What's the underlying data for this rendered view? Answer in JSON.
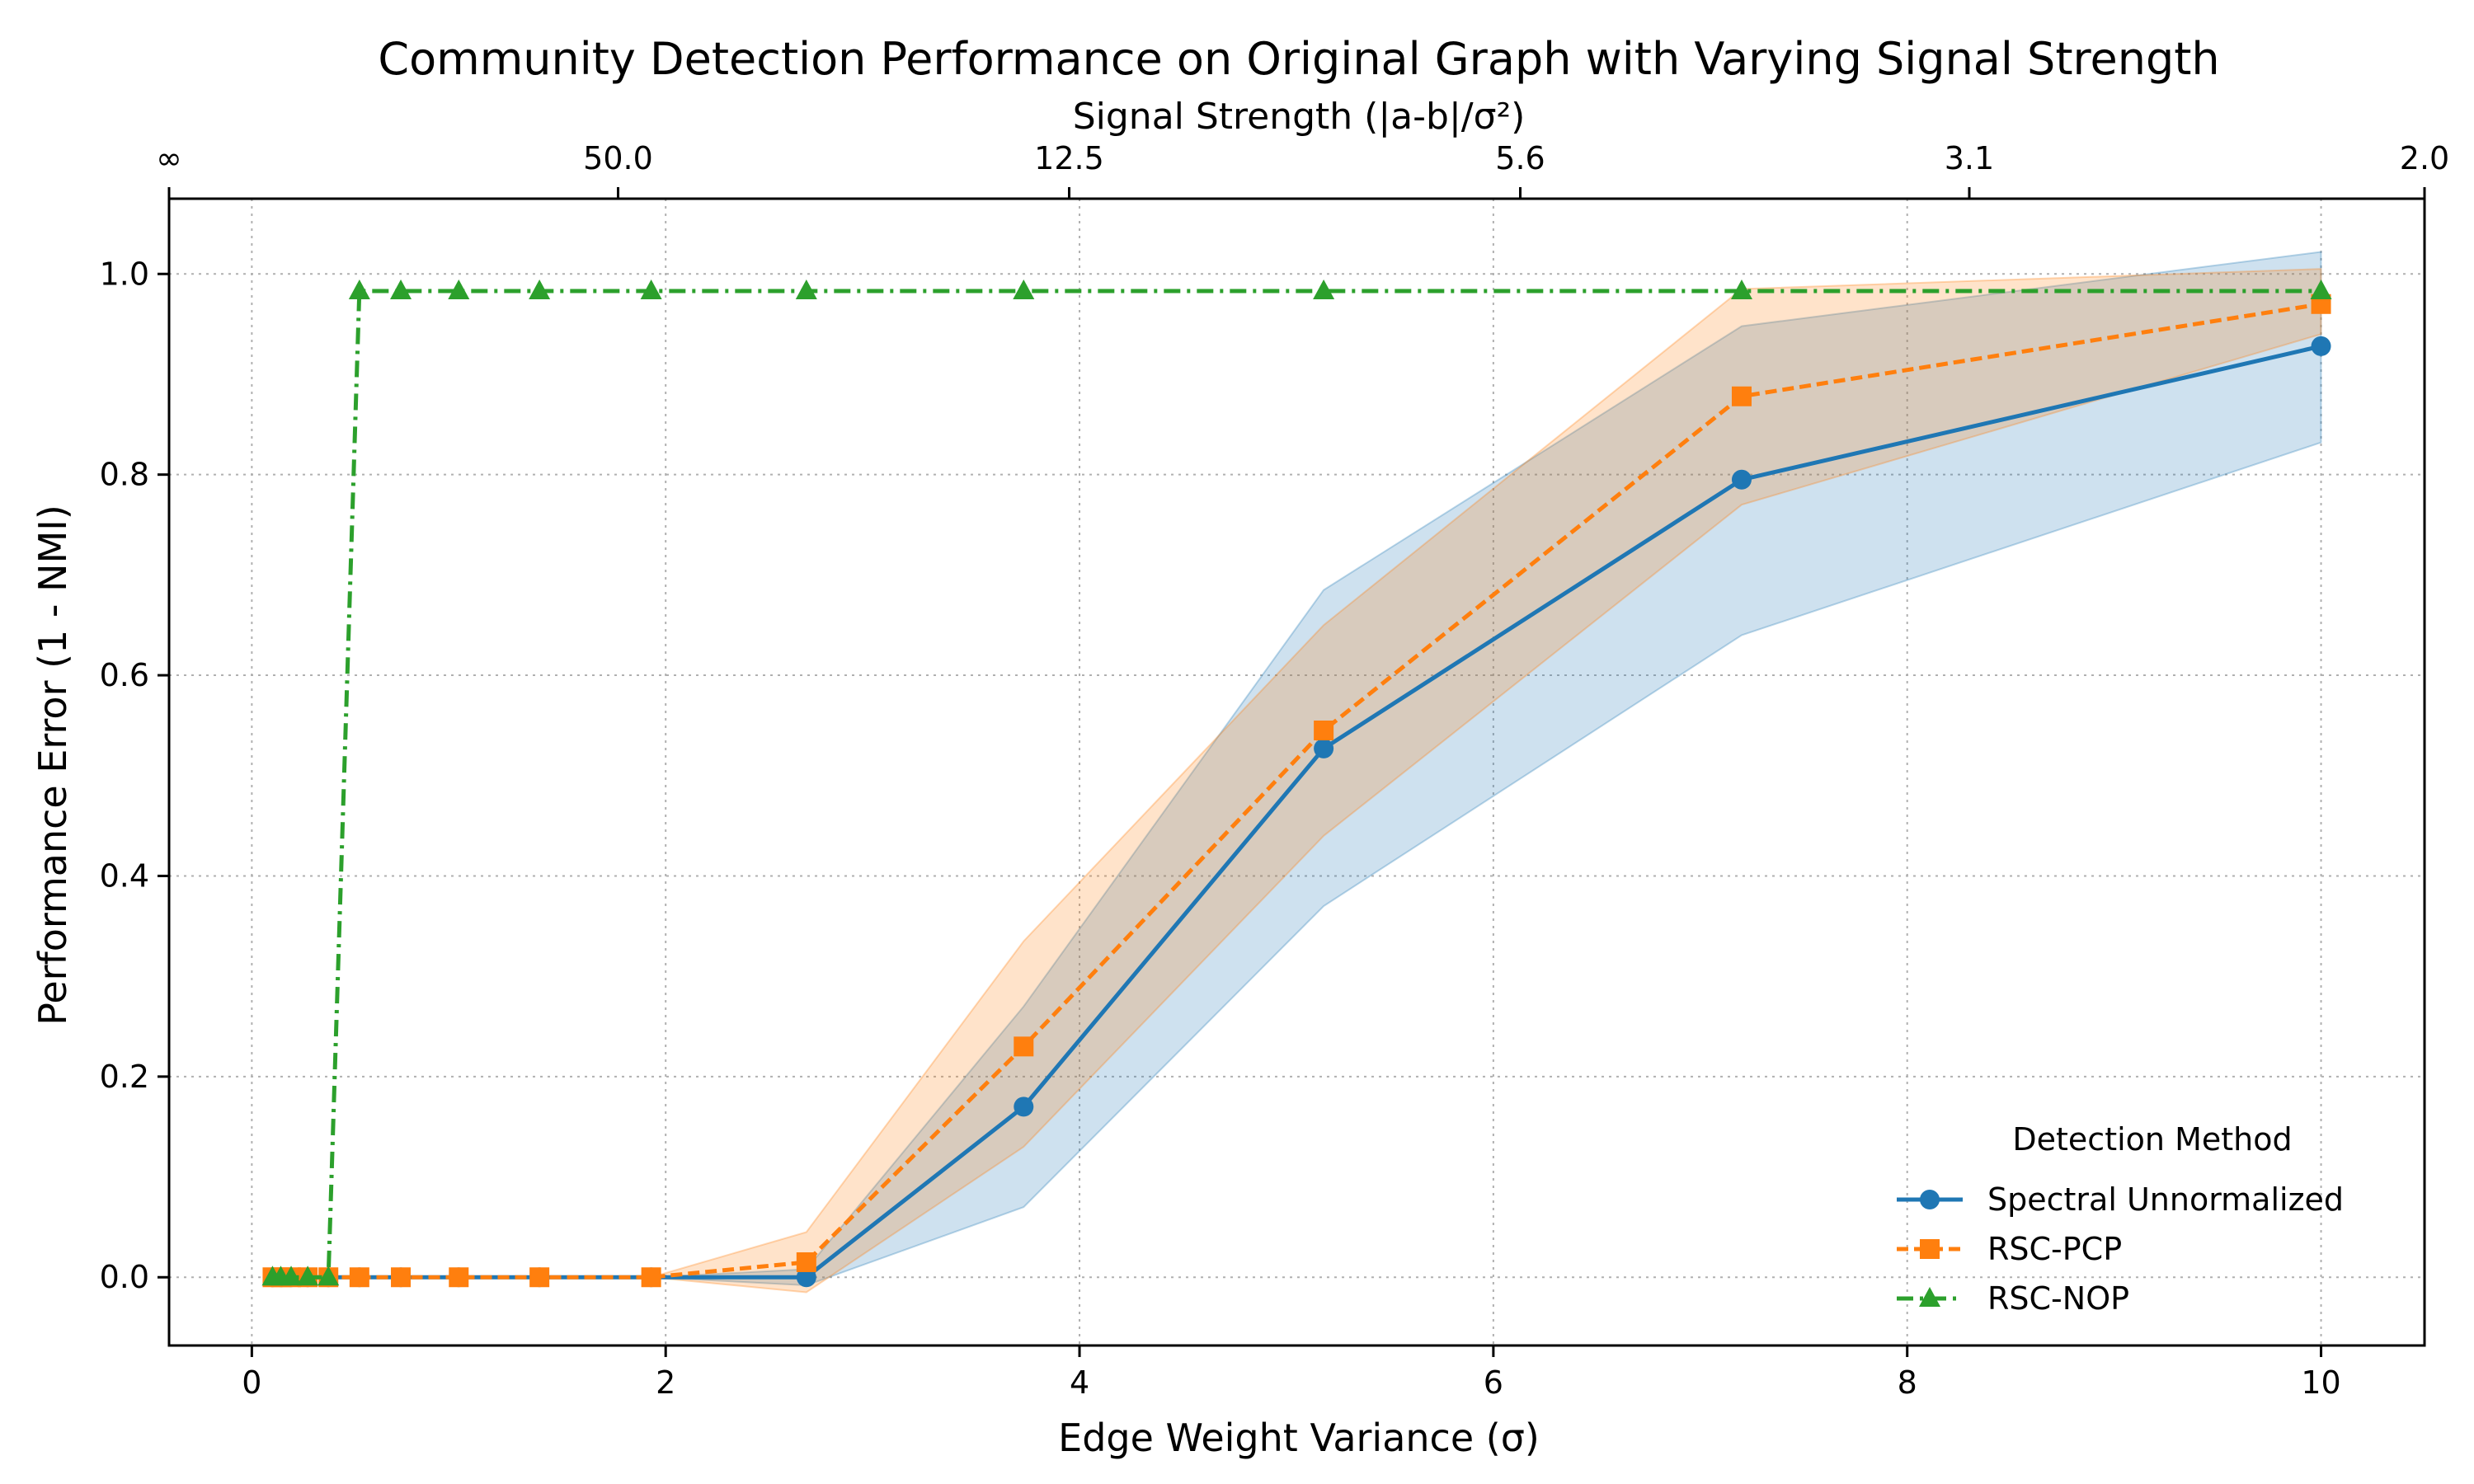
{
  "chart_data": {
    "type": "line",
    "title": "Community Detection Performance on Original Graph with Varying Signal Strength",
    "xlabel": "Edge Weight Variance (σ)",
    "ylabel": "Performance Error (1 - NMI)",
    "top_axis_label": "Signal Strength (|a-b|/σ²)",
    "xlim": [
      -0.4,
      10.5
    ],
    "ylim": [
      -0.068,
      1.075
    ],
    "x_ticks": [
      0,
      2,
      4,
      6,
      8,
      10
    ],
    "x_tick_labels": [
      "0",
      "2",
      "4",
      "6",
      "8",
      "10"
    ],
    "y_ticks": [
      0.0,
      0.2,
      0.4,
      0.6,
      0.8,
      1.0
    ],
    "y_tick_labels": [
      "0.0",
      "0.2",
      "0.4",
      "0.6",
      "0.8",
      "1.0"
    ],
    "top_ticks": [
      {
        "x": -0.4,
        "label": "∞"
      },
      {
        "x": 1.77,
        "label": "50.0"
      },
      {
        "x": 3.95,
        "label": "12.5"
      },
      {
        "x": 6.13,
        "label": "5.6"
      },
      {
        "x": 8.3,
        "label": "3.1"
      },
      {
        "x": 10.5,
        "label": "2.0"
      }
    ],
    "grid": true,
    "legend_title": "Detection Method",
    "legend_position": "lower-right",
    "series": [
      {
        "name": "Spectral Unnormalized",
        "color": "#1f77b4",
        "marker": "circle",
        "line_style": "solid",
        "x": [
          0.1,
          0.14,
          0.19,
          0.27,
          0.37,
          0.52,
          0.72,
          1.0,
          1.39,
          1.93,
          2.68,
          3.73,
          5.18,
          7.2,
          10.0
        ],
        "y": [
          0.0,
          0.0,
          0.0,
          0.0,
          0.0,
          0.0,
          0.0,
          0.0,
          0.0,
          0.0,
          0.0,
          0.17,
          0.527,
          0.795,
          0.928
        ],
        "band_lower": [
          0.0,
          0.0,
          0.0,
          0.0,
          0.0,
          0.0,
          0.0,
          0.0,
          0.0,
          0.0,
          -0.008,
          0.07,
          0.37,
          0.64,
          0.832
        ],
        "band_upper": [
          0.0,
          0.0,
          0.0,
          0.0,
          0.0,
          0.0,
          0.0,
          0.0,
          0.0,
          0.0,
          0.008,
          0.27,
          0.685,
          0.948,
          1.022
        ]
      },
      {
        "name": "RSC-PCP",
        "color": "#ff7f0e",
        "marker": "square",
        "line_style": "dashed",
        "x": [
          0.1,
          0.14,
          0.19,
          0.27,
          0.37,
          0.52,
          0.72,
          1.0,
          1.39,
          1.93,
          2.68,
          3.73,
          5.18,
          7.2,
          10.0
        ],
        "y": [
          0.0,
          0.0,
          0.0,
          0.0,
          0.0,
          0.0,
          0.0,
          0.0,
          0.0,
          0.0,
          0.015,
          0.23,
          0.545,
          0.878,
          0.97
        ],
        "band_lower": [
          0.0,
          0.0,
          0.0,
          0.0,
          0.0,
          0.0,
          0.0,
          0.0,
          0.0,
          0.0,
          -0.015,
          0.13,
          0.44,
          0.77,
          0.94
        ],
        "band_upper": [
          0.0,
          0.0,
          0.0,
          0.0,
          0.0,
          0.0,
          0.0,
          0.0,
          0.0,
          0.0,
          0.045,
          0.335,
          0.65,
          0.985,
          1.005
        ]
      },
      {
        "name": "RSC-NOP",
        "color": "#2ca02c",
        "marker": "triangle",
        "line_style": "dashdot",
        "x": [
          0.1,
          0.14,
          0.19,
          0.27,
          0.37,
          0.52,
          0.72,
          1.0,
          1.39,
          1.93,
          2.68,
          3.73,
          5.18,
          7.2,
          10.0
        ],
        "y": [
          0.0,
          0.0,
          0.0,
          0.0,
          0.0,
          0.983,
          0.983,
          0.983,
          0.983,
          0.983,
          0.983,
          0.983,
          0.983,
          0.983,
          0.983
        ]
      }
    ]
  }
}
